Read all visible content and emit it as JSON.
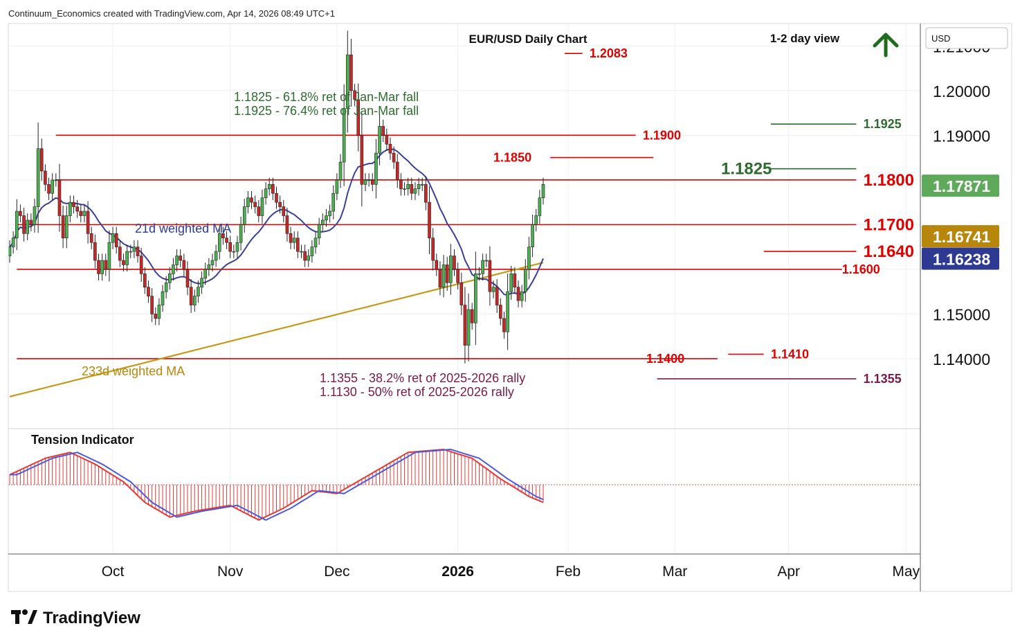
{
  "header": {
    "credit": "Continuum_Economics created with TradingView.com, Apr 14, 2026 08:49 UTC+1"
  },
  "footer": {
    "brand": "TradingView"
  },
  "chart_data": {
    "type": "candlestick",
    "title": "EUR/USD Daily Chart",
    "view_label": "1-2 day view",
    "view_direction": "up",
    "currency": "USD",
    "y_axis": {
      "range": [
        1.1245,
        1.215
      ],
      "ticks": [
        "1.21000",
        "1.20000",
        "1.19000",
        "1.15000",
        "1.14000"
      ],
      "price_tags": [
        {
          "label": "1.17871",
          "value": 1.17871,
          "color": "#5faa5a",
          "name": "last-price"
        },
        {
          "label": "1.16741",
          "value": 1.16741,
          "color": "#b8860b",
          "name": "233d-wma-value"
        },
        {
          "label": "1.16238",
          "value": 1.16238,
          "color": "#2e3a92",
          "name": "21d-wma-value"
        }
      ]
    },
    "x_axis": {
      "labels": [
        {
          "text": "Oct",
          "bar": 29,
          "bold": false
        },
        {
          "text": "Nov",
          "bar": 62,
          "bold": false
        },
        {
          "text": "Dec",
          "bar": 92,
          "bold": false
        },
        {
          "text": "2026",
          "bar": 126,
          "bold": true
        },
        {
          "text": "Feb",
          "bar": 157,
          "bold": false
        },
        {
          "text": "Mar",
          "bar": 187,
          "bold": false
        },
        {
          "text": "Apr",
          "bar": 219,
          "bold": false
        },
        {
          "text": "May",
          "bar": 252,
          "bold": false
        }
      ]
    },
    "bars": [
      1.165,
      1.167,
      1.173,
      1.172,
      1.168,
      1.171,
      1.17,
      1.174,
      1.187,
      1.182,
      1.179,
      1.177,
      1.18,
      1.18,
      1.172,
      1.167,
      1.172,
      1.175,
      1.174,
      1.173,
      1.172,
      1.173,
      1.168,
      1.166,
      1.162,
      1.159,
      1.162,
      1.16,
      1.166,
      1.168,
      1.165,
      1.162,
      1.161,
      1.164,
      1.164,
      1.165,
      1.163,
      1.159,
      1.156,
      1.154,
      1.15,
      1.149,
      1.152,
      1.155,
      1.157,
      1.159,
      1.161,
      1.163,
      1.162,
      1.16,
      1.156,
      1.152,
      1.154,
      1.156,
      1.158,
      1.16,
      1.161,
      1.162,
      1.164,
      1.168,
      1.167,
      1.166,
      1.164,
      1.164,
      1.166,
      1.17,
      1.174,
      1.176,
      1.175,
      1.174,
      1.172,
      1.176,
      1.178,
      1.179,
      1.177,
      1.175,
      1.174,
      1.172,
      1.168,
      1.166,
      1.167,
      1.164,
      1.164,
      1.162,
      1.163,
      1.165,
      1.167,
      1.17,
      1.171,
      1.172,
      1.173,
      1.177,
      1.18,
      1.184,
      1.196,
      1.208,
      1.2,
      1.198,
      1.19,
      1.179,
      1.18,
      1.18,
      1.179,
      1.186,
      1.192,
      1.19,
      1.188,
      1.186,
      1.184,
      1.18,
      1.178,
      1.178,
      1.179,
      1.177,
      1.178,
      1.179,
      1.179,
      1.175,
      1.167,
      1.162,
      1.16,
      1.156,
      1.161,
      1.157,
      1.163,
      1.16,
      1.157,
      1.152,
      1.143,
      1.151,
      1.148,
      1.159,
      1.159,
      1.162,
      1.162,
      1.155,
      1.156,
      1.152,
      1.149,
      1.146,
      1.155,
      1.159,
      1.156,
      1.153,
      1.155,
      1.16,
      1.165,
      1.17,
      1.172,
      1.176,
      1.179
    ],
    "levels": [
      {
        "value": 1.2083,
        "label": "1.2083",
        "color": "#e00000",
        "x0": 156,
        "x1": 161,
        "label_bar": 163
      },
      {
        "value": 1.1925,
        "label": "1.1925",
        "color": "#2e6b2e",
        "x0": 214,
        "x1": 238,
        "label_bar": 240
      },
      {
        "value": 1.19,
        "label": "1.1900",
        "color": "#e00000",
        "x0": 13,
        "x1": 176,
        "label_bar": 178
      },
      {
        "value": 1.185,
        "label": "1.1850",
        "color": "#e00000",
        "x0": 152,
        "x1": 181,
        "label_bar": 136
      },
      {
        "value": 1.1825,
        "label": "1.1825",
        "color": "#2e6b2e",
        "x0": 214,
        "x1": 238,
        "label_bar": 200
      },
      {
        "value": 1.18,
        "label": "1.1800",
        "color": "#e00000",
        "x0": 13,
        "x1": 238,
        "label_bar": 240
      },
      {
        "value": 1.17,
        "label": "1.1700",
        "color": "#e00000",
        "x0": 2,
        "x1": 238,
        "label_bar": 240
      },
      {
        "value": 1.164,
        "label": "1.1640",
        "color": "#e00000",
        "x0": 212,
        "x1": 238,
        "label_bar": 240
      },
      {
        "value": 1.16,
        "label": "1.1600",
        "color": "#e00000",
        "x0": 2,
        "x1": 234,
        "label_bar": 234
      },
      {
        "value": 1.141,
        "label": "1.1410",
        "color": "#e00000",
        "x0": 202,
        "x1": 212,
        "label_bar": 214
      },
      {
        "value": 1.14,
        "label": "1.1400",
        "color": "#e00000",
        "x0": 2,
        "x1": 199,
        "label_bar": 179
      },
      {
        "value": 1.1355,
        "label": "1.1355",
        "color": "#7a1a4a",
        "x0": 182,
        "x1": 238,
        "label_bar": 240
      }
    ],
    "annotations": {
      "fib_upper": [
        "1.1825 - 61.8% ret of Jan-Mar fall",
        "1.1925 - 76.4% ret of Jan-Mar fall"
      ],
      "fib_lower": [
        "1.1355 - 38.2% ret of 2025-2026 rally",
        "1.1130 - 50% ret of 2025-2026 rally"
      ],
      "ma21_label": "21d weighted MA",
      "ma233_label": "233d weighted MA"
    },
    "series": [
      {
        "name": "21d weighted MA",
        "color": "#3a3f9a"
      },
      {
        "name": "233d weighted MA",
        "color": "#c49a1a"
      }
    ],
    "indicator": {
      "title": "Tension Indicator",
      "range": [
        -1.0,
        1.0
      ],
      "points": [
        [
          0,
          0.17
        ],
        [
          10,
          0.45
        ],
        [
          17,
          0.55
        ],
        [
          24,
          0.35
        ],
        [
          32,
          0.05
        ],
        [
          38,
          -0.3
        ],
        [
          45,
          -0.55
        ],
        [
          52,
          -0.45
        ],
        [
          62,
          -0.35
        ],
        [
          70,
          -0.6
        ],
        [
          77,
          -0.4
        ],
        [
          85,
          -0.1
        ],
        [
          92,
          -0.15
        ],
        [
          102,
          0.2
        ],
        [
          112,
          0.55
        ],
        [
          122,
          0.6
        ],
        [
          130,
          0.45
        ],
        [
          138,
          0.1
        ],
        [
          146,
          -0.2
        ],
        [
          150,
          -0.3
        ],
        [
          155,
          0.05
        ],
        [
          158,
          0.9
        ],
        [
          164,
          0.5
        ],
        [
          170,
          0.3
        ],
        [
          178,
          0.2
        ],
        [
          184,
          -0.05
        ],
        [
          192,
          -0.35
        ],
        [
          196,
          -0.7
        ],
        [
          204,
          -1.0
        ],
        [
          208,
          -0.9
        ],
        [
          214,
          -0.5
        ],
        [
          220,
          -0.4
        ],
        [
          226,
          -0.2
        ],
        [
          232,
          0.3
        ],
        [
          236,
          0.7
        ]
      ],
      "signal_lag": 2
    }
  }
}
